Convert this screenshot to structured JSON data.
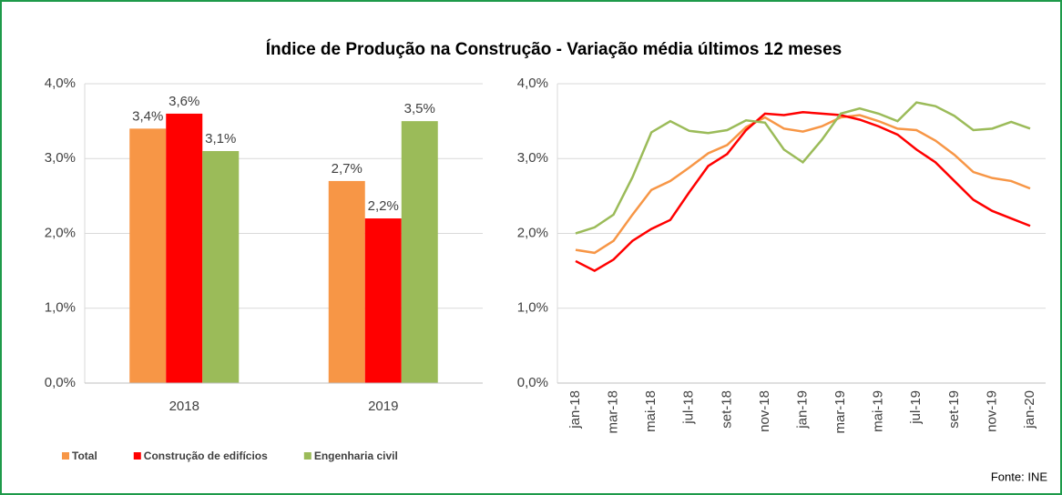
{
  "title": "Índice de Produção na Construção - Variação média últimos 12 meses",
  "source": "Fonte: INE",
  "chart_data": [
    {
      "type": "bar",
      "categories": [
        "2018",
        "2019"
      ],
      "series": [
        {
          "name": "Total",
          "color": "#f79646",
          "values": [
            3.4,
            2.7
          ],
          "value_labels": [
            "3,4%",
            "2,7%"
          ]
        },
        {
          "name": "Construção de edifícios",
          "color": "#ff0000",
          "values": [
            3.6,
            2.2
          ],
          "value_labels": [
            "3,6%",
            "2,2%"
          ]
        },
        {
          "name": "Engenharia civil",
          "color": "#9bbb59",
          "values": [
            3.1,
            3.5
          ],
          "value_labels": [
            "3,1%",
            "3,5%"
          ]
        }
      ],
      "ylim": [
        0,
        4
      ],
      "yticks": [
        {
          "value": 0,
          "label": "0,0%"
        },
        {
          "value": 1,
          "label": "1,0%"
        },
        {
          "value": 2,
          "label": "2,0%"
        },
        {
          "value": 3,
          "label": "3,0%"
        },
        {
          "value": 4,
          "label": "4,0%"
        }
      ],
      "grid": true,
      "legend": "bottom"
    },
    {
      "type": "line",
      "categories": [
        "jan-18",
        null,
        "mar-18",
        null,
        "mai-18",
        null,
        "jul-18",
        null,
        "set-18",
        null,
        "nov-18",
        null,
        "jan-19",
        null,
        "mar-19",
        null,
        "mai-19",
        null,
        "jul-19",
        null,
        "set-19",
        null,
        "nov-19",
        null,
        "jan-20"
      ],
      "series": [
        {
          "color": "#f79646",
          "values": [
            1.78,
            1.74,
            1.9,
            2.25,
            2.58,
            2.7,
            2.88,
            3.07,
            3.18,
            3.42,
            3.55,
            3.4,
            3.36,
            3.43,
            3.55,
            3.58,
            3.5,
            3.4,
            3.38,
            3.24,
            3.05,
            2.82,
            2.74,
            2.7,
            2.6
          ]
        },
        {
          "color": "#ff0000",
          "values": [
            1.63,
            1.5,
            1.65,
            1.9,
            2.06,
            2.18,
            2.55,
            2.9,
            3.06,
            3.38,
            3.6,
            3.58,
            3.62,
            3.6,
            3.58,
            3.52,
            3.43,
            3.32,
            3.12,
            2.95,
            2.7,
            2.45,
            2.3,
            2.2,
            2.1
          ]
        },
        {
          "color": "#9bbb59",
          "values": [
            2.0,
            2.08,
            2.25,
            2.75,
            3.35,
            3.5,
            3.37,
            3.34,
            3.38,
            3.51,
            3.48,
            3.12,
            2.95,
            3.25,
            3.6,
            3.67,
            3.6,
            3.5,
            3.75,
            3.7,
            3.57,
            3.38,
            3.4,
            3.49,
            3.4
          ]
        }
      ],
      "ylim": [
        0,
        4
      ],
      "yticks": [
        {
          "value": 0,
          "label": "0,0%"
        },
        {
          "value": 1,
          "label": "1,0%"
        },
        {
          "value": 2,
          "label": "2,0%"
        },
        {
          "value": 3,
          "label": "3,0%"
        },
        {
          "value": 4,
          "label": "4,0%"
        }
      ],
      "grid": true
    }
  ]
}
